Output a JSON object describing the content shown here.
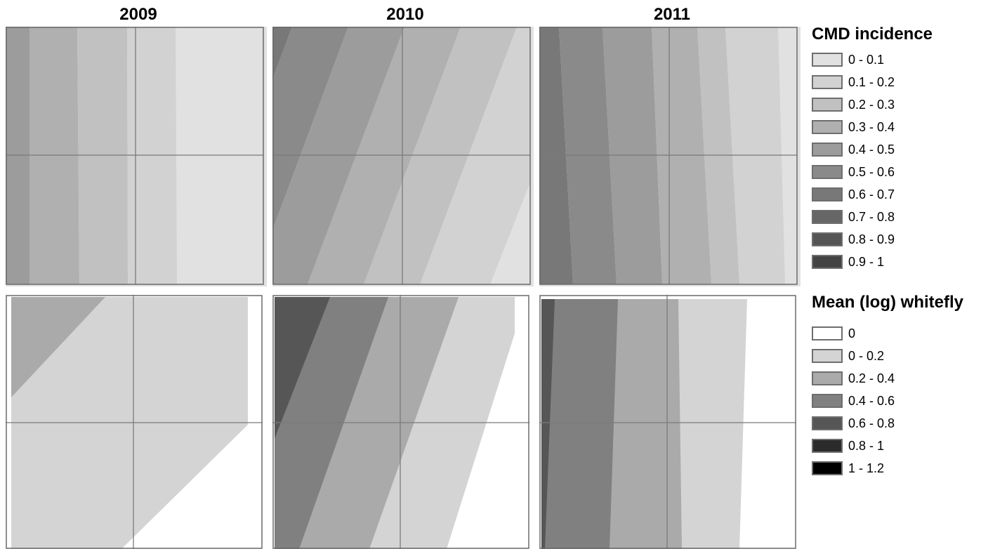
{
  "years": [
    "2009",
    "2010",
    "2011"
  ],
  "legends": {
    "cmd": {
      "title": "CMD incidence",
      "items": [
        {
          "label": "0 - 0.1",
          "color": "#e1e1e1"
        },
        {
          "label": "0.1 - 0.2",
          "color": "#d2d2d2"
        },
        {
          "label": "0.2 - 0.3",
          "color": "#c1c1c1"
        },
        {
          "label": "0.3 - 0.4",
          "color": "#b0b0b0"
        },
        {
          "label": "0.4 - 0.5",
          "color": "#9c9c9c"
        },
        {
          "label": "0.5 - 0.6",
          "color": "#8a8a8a"
        },
        {
          "label": "0.6 - 0.7",
          "color": "#787878"
        },
        {
          "label": "0.7 - 0.8",
          "color": "#666666"
        },
        {
          "label": "0.8 - 0.9",
          "color": "#555555"
        },
        {
          "label": "0.9 - 1",
          "color": "#434343"
        }
      ]
    },
    "whitefly": {
      "title": "Mean (log) whitefly",
      "items": [
        {
          "label": "0",
          "color": "#ffffff"
        },
        {
          "label": "0 - 0.2",
          "color": "#d4d4d4"
        },
        {
          "label": "0.2 - 0.4",
          "color": "#aaaaaa"
        },
        {
          "label": "0.4 - 0.6",
          "color": "#808080"
        },
        {
          "label": "0.6 - 0.8",
          "color": "#565656"
        },
        {
          "label": "0.8 - 1",
          "color": "#2b2b2b"
        },
        {
          "label": "1 - 1.2",
          "color": "#000000"
        }
      ]
    }
  }
}
